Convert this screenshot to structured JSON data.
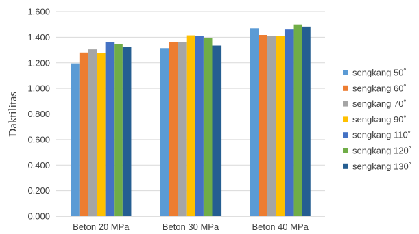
{
  "chart_data": {
    "type": "bar",
    "title": "",
    "xlabel": "",
    "ylabel": "Daktilitas",
    "ylim": [
      0,
      1.6
    ],
    "yticks": [
      "0.000",
      "0.200",
      "0.400",
      "0.600",
      "0.800",
      "1.000",
      "1.200",
      "1.400",
      "1.600"
    ],
    "grid": true,
    "legend_position": "right",
    "categories": [
      "Beton 20 MPa",
      "Beton 30 MPa",
      "Beton 40 MPa"
    ],
    "series": [
      {
        "name": "sengkang 50˚",
        "color": "#5B9BD5",
        "values": [
          1.195,
          1.315,
          1.47
        ]
      },
      {
        "name": "sengkang 60˚",
        "color": "#ED7D31",
        "values": [
          1.28,
          1.362,
          1.418
        ]
      },
      {
        "name": "sengkang 70˚",
        "color": "#A5A5A5",
        "values": [
          1.305,
          1.36,
          1.41
        ]
      },
      {
        "name": "sengkang 90˚",
        "color": "#FFC000",
        "values": [
          1.275,
          1.415,
          1.41
        ]
      },
      {
        "name": "sengkang 110˚",
        "color": "#4472C4",
        "values": [
          1.362,
          1.41,
          1.46
        ]
      },
      {
        "name": "sengkang 120˚",
        "color": "#70AD47",
        "values": [
          1.345,
          1.392,
          1.5
        ]
      },
      {
        "name": "sengkang 130˚",
        "color": "#255E91",
        "values": [
          1.325,
          1.335,
          1.483
        ]
      }
    ]
  }
}
